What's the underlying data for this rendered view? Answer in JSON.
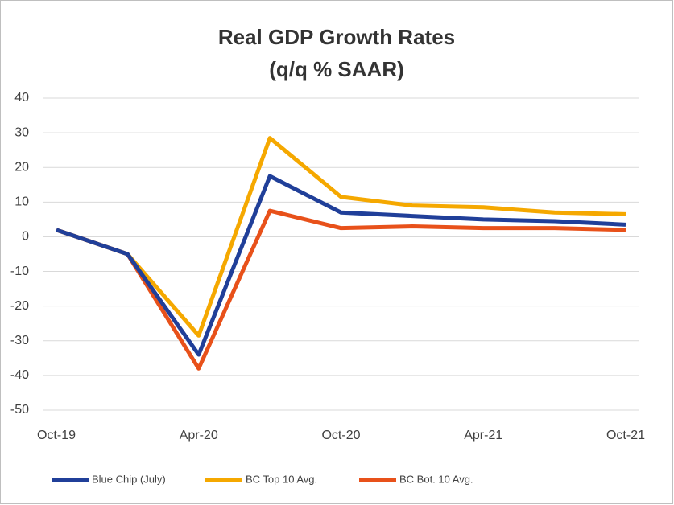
{
  "chart_data": {
    "type": "line",
    "title": [
      "Real GDP Growth Rates",
      "(q/q % SAAR)"
    ],
    "categories": [
      "Oct-19",
      null,
      "Apr-20",
      null,
      "Oct-20",
      null,
      "Apr-21",
      null,
      "Oct-21"
    ],
    "series": [
      {
        "name": "Blue Chip (July)",
        "color": "#203f99",
        "values": [
          2,
          -5,
          -34,
          17.5,
          7,
          6,
          5,
          4.5,
          3.5
        ]
      },
      {
        "name": "BC Top 10 Avg.",
        "color": "#f5a800",
        "values": [
          2,
          -5,
          -28.5,
          28.5,
          11.5,
          9,
          8.5,
          7,
          6.5
        ]
      },
      {
        "name": "BC Bot. 10 Avg.",
        "color": "#e8511a",
        "values": [
          2,
          -5,
          -38,
          7.5,
          2.5,
          3,
          2.5,
          2.5,
          2
        ]
      }
    ],
    "ylim": [
      -50,
      40
    ],
    "yticks": [
      -50,
      -40,
      -30,
      -20,
      -10,
      0,
      10,
      20,
      30,
      40
    ],
    "grid": true,
    "legend": "bottom"
  }
}
